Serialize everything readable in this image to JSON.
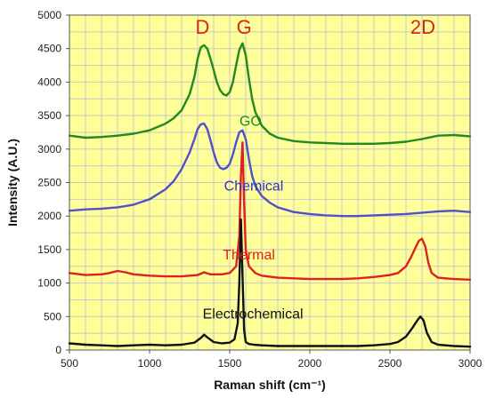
{
  "chart_data": {
    "type": "line",
    "title": "",
    "xlabel": "Raman shift (cm⁻¹)",
    "ylabel": "Intensity (A.U.)",
    "xlim": [
      500,
      3000
    ],
    "ylim": [
      0,
      5000
    ],
    "x_ticks": [
      500,
      1000,
      1500,
      2000,
      2500,
      3000
    ],
    "y_ticks": [
      0,
      500,
      1000,
      1500,
      2000,
      2500,
      3000,
      3500,
      4000,
      4500,
      5000
    ],
    "x_tick_labels": [
      "500",
      "1000",
      "1500",
      "2000",
      "2500",
      "3000"
    ],
    "y_tick_labels": [
      "0",
      "500",
      "1000",
      "1500",
      "2000",
      "2500",
      "3000",
      "3500",
      "4000",
      "4500",
      "5000"
    ],
    "grid": true,
    "plot_background": "#ffff99",
    "grid_color": "#c8c8c8",
    "legend": "none",
    "series": [
      {
        "label": "GO",
        "color": "#1f8a1f",
        "x": [
          500,
          600,
          700,
          800,
          900,
          1000,
          1100,
          1150,
          1200,
          1250,
          1280,
          1300,
          1320,
          1340,
          1360,
          1380,
          1400,
          1420,
          1440,
          1460,
          1480,
          1500,
          1520,
          1540,
          1560,
          1580,
          1600,
          1620,
          1640,
          1660,
          1700,
          1750,
          1800,
          1900,
          2000,
          2100,
          2200,
          2300,
          2400,
          2500,
          2600,
          2700,
          2800,
          2900,
          3000
        ],
        "y": [
          3200,
          3170,
          3180,
          3200,
          3230,
          3280,
          3380,
          3460,
          3580,
          3820,
          4080,
          4350,
          4520,
          4550,
          4500,
          4350,
          4180,
          4000,
          3880,
          3820,
          3800,
          3850,
          4000,
          4250,
          4480,
          4580,
          4400,
          4050,
          3750,
          3550,
          3350,
          3230,
          3170,
          3120,
          3100,
          3090,
          3080,
          3080,
          3080,
          3090,
          3110,
          3150,
          3200,
          3210,
          3190
        ]
      },
      {
        "label": "Chemical",
        "color": "#5050cc",
        "x": [
          500,
          600,
          700,
          800,
          900,
          1000,
          1100,
          1150,
          1200,
          1250,
          1280,
          1300,
          1320,
          1340,
          1360,
          1380,
          1400,
          1420,
          1440,
          1460,
          1480,
          1500,
          1520,
          1540,
          1560,
          1580,
          1600,
          1620,
          1640,
          1660,
          1700,
          1750,
          1800,
          1900,
          2000,
          2100,
          2200,
          2300,
          2400,
          2500,
          2600,
          2700,
          2800,
          2900,
          3000
        ],
        "y": [
          2080,
          2100,
          2110,
          2130,
          2170,
          2250,
          2400,
          2520,
          2700,
          2950,
          3150,
          3300,
          3370,
          3380,
          3300,
          3130,
          2950,
          2800,
          2720,
          2700,
          2720,
          2780,
          2920,
          3100,
          3250,
          3280,
          3150,
          2850,
          2600,
          2450,
          2300,
          2200,
          2130,
          2060,
          2030,
          2010,
          2000,
          2000,
          2010,
          2020,
          2030,
          2050,
          2070,
          2080,
          2060
        ]
      },
      {
        "label": "Thermal",
        "color": "#dd2020",
        "x": [
          500,
          600,
          700,
          750,
          800,
          850,
          900,
          1000,
          1100,
          1200,
          1300,
          1340,
          1380,
          1450,
          1500,
          1540,
          1560,
          1570,
          1580,
          1590,
          1600,
          1620,
          1660,
          1700,
          1800,
          1900,
          2000,
          2100,
          2200,
          2300,
          2400,
          2500,
          2550,
          2600,
          2630,
          2660,
          2680,
          2700,
          2720,
          2740,
          2760,
          2800,
          2900,
          3000
        ],
        "y": [
          1150,
          1120,
          1130,
          1150,
          1180,
          1160,
          1130,
          1110,
          1100,
          1100,
          1120,
          1160,
          1130,
          1130,
          1150,
          1250,
          1700,
          2600,
          3100,
          2200,
          1500,
          1250,
          1150,
          1110,
          1080,
          1070,
          1060,
          1060,
          1060,
          1070,
          1090,
          1120,
          1150,
          1250,
          1380,
          1530,
          1630,
          1660,
          1550,
          1300,
          1150,
          1080,
          1060,
          1050
        ]
      },
      {
        "label": "Electrochemical",
        "color": "#111111",
        "x": [
          500,
          600,
          700,
          800,
          900,
          1000,
          1100,
          1200,
          1280,
          1320,
          1340,
          1360,
          1400,
          1450,
          1500,
          1530,
          1550,
          1560,
          1570,
          1580,
          1590,
          1600,
          1620,
          1650,
          1700,
          1800,
          1900,
          2000,
          2100,
          2200,
          2300,
          2400,
          2500,
          2550,
          2600,
          2640,
          2670,
          2690,
          2710,
          2730,
          2760,
          2800,
          2900,
          3000
        ],
        "y": [
          100,
          80,
          70,
          60,
          70,
          80,
          70,
          80,
          110,
          180,
          230,
          190,
          120,
          100,
          110,
          160,
          400,
          1000,
          1950,
          1100,
          300,
          120,
          90,
          80,
          70,
          60,
          60,
          60,
          60,
          60,
          60,
          70,
          90,
          120,
          200,
          330,
          440,
          500,
          440,
          260,
          120,
          80,
          60,
          50
        ]
      }
    ],
    "annotations": [
      {
        "text": "D",
        "x": 1330,
        "y": 4720,
        "color": "#dd2020"
      },
      {
        "text": "G",
        "x": 1590,
        "y": 4720,
        "color": "#dd2020"
      },
      {
        "text": "2D",
        "x": 2705,
        "y": 4720,
        "color": "#dd2020"
      },
      {
        "text": "GO",
        "x": 1630,
        "y": 3350,
        "color": "#1f8a1f"
      },
      {
        "text": "Chemical",
        "x": 1650,
        "y": 2380,
        "color": "#3030cc"
      },
      {
        "text": "Thermal",
        "x": 1620,
        "y": 1350,
        "color": "#dd2020"
      },
      {
        "text": "Electrochemical",
        "x": 1645,
        "y": 470,
        "color": "#111111"
      }
    ]
  }
}
